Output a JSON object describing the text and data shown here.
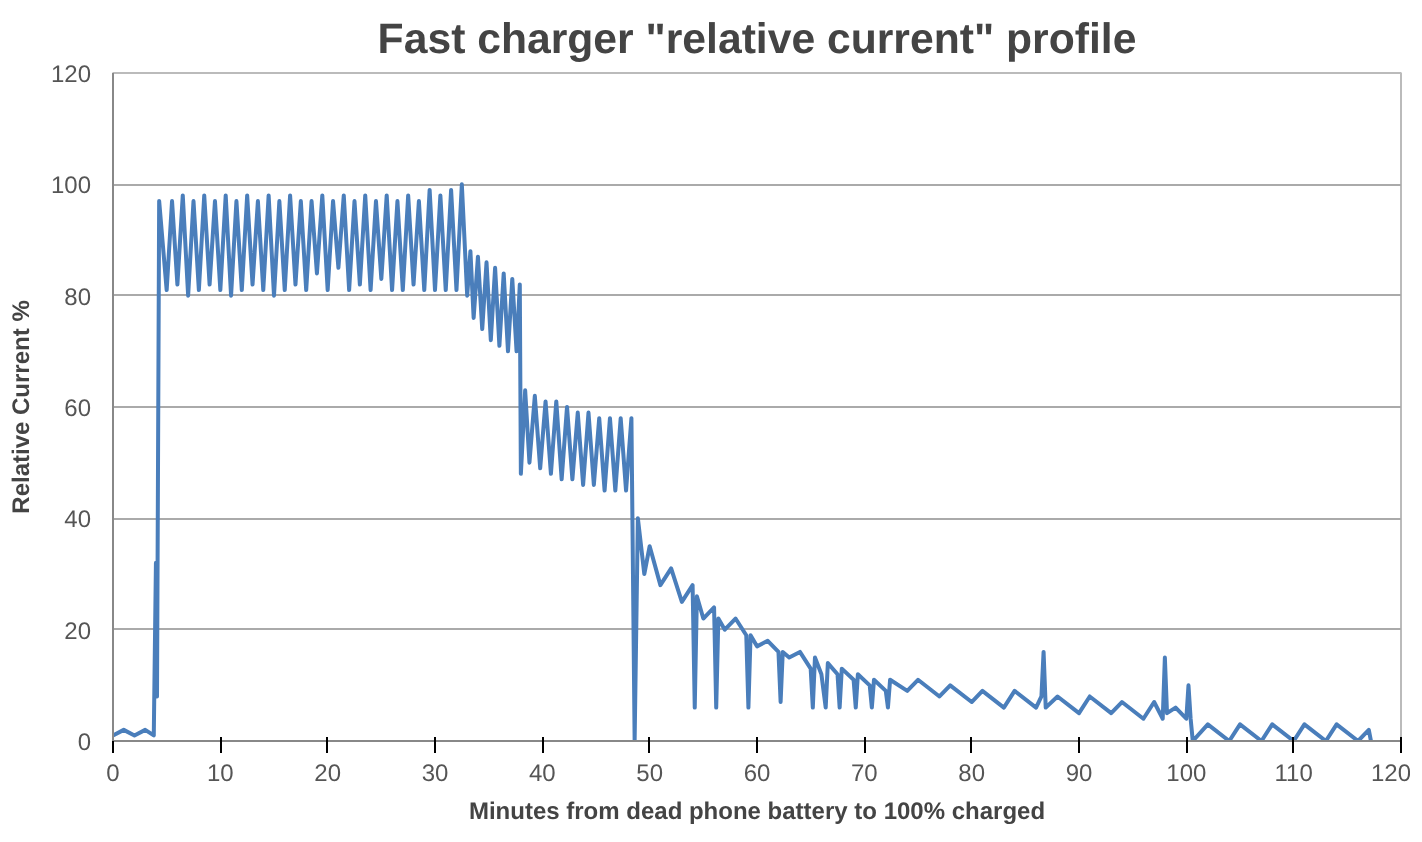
{
  "chart_data": {
    "type": "line",
    "title": "Fast charger \"relative current\" profile",
    "xlabel": "Minutes from dead phone battery to 100% charged",
    "ylabel": "Relative Current %",
    "xlim": [
      0,
      120
    ],
    "xticks": [
      0,
      10,
      20,
      30,
      40,
      50,
      60,
      70,
      80,
      90,
      100,
      110,
      120
    ],
    "ylim": [
      0,
      120
    ],
    "yticks": [
      0,
      20,
      40,
      60,
      80,
      100,
      120
    ],
    "grid": "y",
    "marker": "none",
    "line_style": "solid",
    "series": [
      {
        "color": "#4a7ebb",
        "x": [
          0,
          1,
          2,
          3,
          3.8,
          4.0,
          4.1,
          4.3,
          5,
          5.5,
          6,
          6.5,
          7,
          7.5,
          8,
          8.5,
          9,
          9.5,
          10,
          10.5,
          11,
          11.5,
          12,
          12.5,
          13,
          13.5,
          14,
          14.5,
          15,
          15.5,
          16,
          16.5,
          17,
          17.5,
          18,
          18.5,
          19,
          19.5,
          20,
          20.5,
          21,
          21.5,
          22,
          22.5,
          23,
          23.5,
          24,
          24.5,
          25,
          25.5,
          26,
          26.5,
          27,
          27.5,
          28,
          28.5,
          29,
          29.5,
          30,
          30.5,
          31,
          31.5,
          32,
          32.5,
          33,
          33.3,
          33.6,
          34,
          34.4,
          34.8,
          35.2,
          35.6,
          36,
          36.4,
          36.8,
          37.2,
          37.6,
          37.9,
          38,
          38.4,
          38.8,
          39.3,
          39.8,
          40.3,
          40.8,
          41.3,
          41.8,
          42.3,
          42.8,
          43.3,
          43.8,
          44.3,
          44.8,
          45.3,
          45.8,
          46.3,
          46.8,
          47.3,
          47.8,
          48.3,
          48.6,
          48.9,
          49.5,
          50,
          51,
          52,
          53,
          54,
          54.2,
          54.4,
          55,
          56,
          56.2,
          56.4,
          57,
          58,
          59,
          59.2,
          59.4,
          60,
          61,
          62,
          62.2,
          62.4,
          63,
          64,
          65,
          65.2,
          65.4,
          66,
          66.4,
          66.6,
          67.5,
          67.7,
          67.9,
          69,
          69.2,
          69.4,
          70.5,
          70.7,
          70.9,
          72,
          72.2,
          72.4,
          74,
          75,
          77,
          78,
          80,
          81,
          83,
          84,
          86,
          86.5,
          86.7,
          86.9,
          88,
          90,
          91,
          93,
          94,
          96,
          97,
          97.8,
          98,
          98.2,
          99,
          100,
          100.2,
          100.4,
          100.6,
          102,
          104,
          105,
          107,
          108,
          110,
          111,
          113,
          114,
          116,
          117,
          117.2
        ],
        "values": [
          1,
          2,
          1,
          2,
          1,
          32,
          8,
          97,
          81,
          97,
          82,
          98,
          80,
          97,
          81,
          98,
          82,
          97,
          81,
          98,
          80,
          97,
          81,
          98,
          82,
          97,
          81,
          98,
          80,
          97,
          81,
          98,
          82,
          97,
          81,
          97,
          84,
          98,
          81,
          97,
          85,
          98,
          81,
          97,
          82,
          98,
          81,
          97,
          83,
          98,
          81,
          97,
          81,
          98,
          82,
          97,
          81,
          99,
          81,
          98,
          81,
          99,
          81,
          100,
          80,
          88,
          76,
          87,
          74,
          86,
          72,
          85,
          71,
          84,
          70,
          83,
          70,
          82,
          48,
          63,
          50,
          62,
          49,
          61,
          48,
          61,
          47,
          60,
          47,
          59,
          46,
          59,
          46,
          58,
          45,
          58,
          45,
          58,
          45,
          58,
          0,
          40,
          30,
          35,
          28,
          31,
          25,
          28,
          6,
          26,
          22,
          24,
          6,
          22,
          20,
          22,
          19,
          6,
          19,
          17,
          18,
          16,
          7,
          16,
          15,
          16,
          13,
          6,
          15,
          12,
          6,
          14,
          12,
          6,
          13,
          11,
          6,
          12,
          10,
          6,
          11,
          9,
          6,
          11,
          9,
          11,
          8,
          10,
          7,
          9,
          6,
          9,
          6,
          8,
          16,
          6,
          8,
          5,
          8,
          5,
          7,
          4,
          7,
          4,
          15,
          5,
          6,
          4,
          10,
          4,
          0,
          3,
          0,
          3,
          0,
          3,
          0,
          3,
          0,
          3,
          0,
          2,
          0
        ]
      }
    ]
  }
}
